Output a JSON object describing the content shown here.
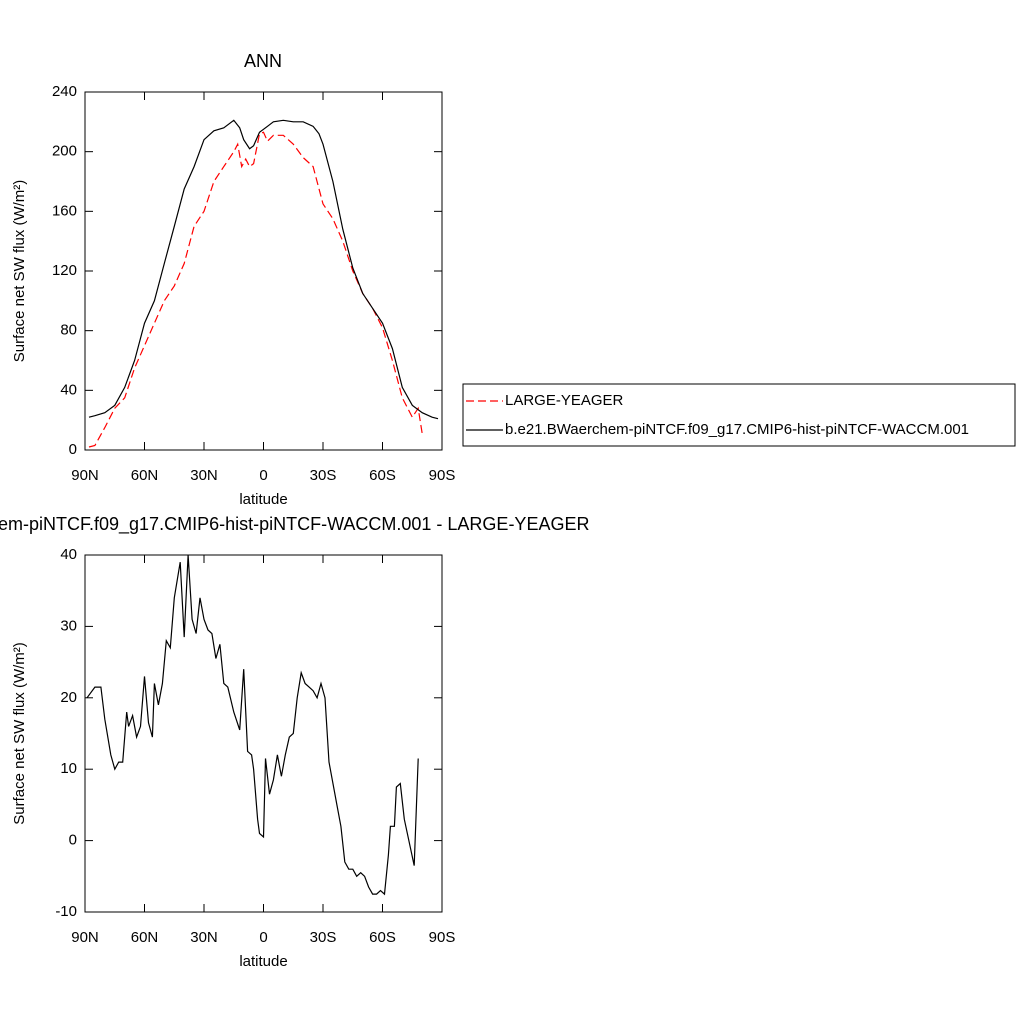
{
  "chart_data": [
    {
      "type": "line",
      "title": "ANN",
      "xlabel": "latitude",
      "ylabel": "Surface net SW flux (W/m²)",
      "xlim": [
        90,
        -90
      ],
      "xticks": [
        {
          "value": 90,
          "label": "90N"
        },
        {
          "value": 60,
          "label": "60N"
        },
        {
          "value": 30,
          "label": "30N"
        },
        0,
        {
          "value": -30,
          "label": "30S"
        },
        {
          "value": -60,
          "label": "60S"
        },
        {
          "value": -90,
          "label": "90S"
        }
      ],
      "ylim": [
        0,
        240
      ],
      "yticks": [
        0,
        40,
        80,
        120,
        160,
        200,
        240
      ],
      "legend": "right",
      "series": [
        {
          "name": "LARGE-YEAGER",
          "color": "#ff0000",
          "dashed": true,
          "x": [
            88,
            85,
            80,
            75,
            70,
            65,
            60,
            55,
            50,
            45,
            40,
            35,
            30,
            25,
            20,
            15,
            13,
            11,
            9,
            7,
            5,
            2,
            0,
            -2,
            -5,
            -10,
            -15,
            -20,
            -25,
            -30,
            -35,
            -40,
            -45,
            -50,
            -55,
            -60,
            -65,
            -70,
            -75,
            -78,
            -80
          ],
          "values": [
            2,
            3,
            15,
            28,
            35,
            55,
            70,
            85,
            100,
            110,
            125,
            150,
            160,
            180,
            190,
            200,
            205,
            190,
            195,
            190,
            192,
            212,
            213,
            207,
            211,
            211,
            205,
            196,
            190,
            165,
            155,
            140,
            120,
            105,
            95,
            82,
            60,
            35,
            22,
            28,
            11
          ]
        },
        {
          "name": "b.e21.BWaerchem-piNTCF.f09_g17.CMIP6-hist-piNTCF-WACCM.001",
          "color": "#000000",
          "dashed": false,
          "x": [
            88,
            85,
            80,
            75,
            70,
            65,
            60,
            55,
            50,
            45,
            40,
            35,
            30,
            25,
            20,
            15,
            12,
            10,
            7,
            5,
            2,
            0,
            -2,
            -5,
            -10,
            -15,
            -20,
            -25,
            -28,
            -30,
            -35,
            -40,
            -45,
            -50,
            -55,
            -60,
            -65,
            -70,
            -75,
            -80,
            -85,
            -88
          ],
          "values": [
            22,
            23,
            25,
            30,
            42,
            60,
            85,
            100,
            125,
            150,
            175,
            190,
            208,
            214,
            216,
            221,
            216,
            208,
            202,
            204,
            213,
            215,
            217,
            220,
            221,
            220,
            220,
            217,
            212,
            205,
            180,
            148,
            122,
            105,
            95,
            85,
            68,
            42,
            30,
            25,
            22,
            21
          ]
        }
      ]
    },
    {
      "type": "line",
      "title": "em-piNTCF.f09_g17.CMIP6-hist-piNTCF-WACCM.001 - LARGE-YEAGER",
      "xlabel": "latitude",
      "ylabel": "Surface net SW flux (W/m²)",
      "xlim": [
        90,
        -90
      ],
      "xticks": [
        {
          "value": 90,
          "label": "90N"
        },
        {
          "value": 60,
          "label": "60N"
        },
        {
          "value": 30,
          "label": "30N"
        },
        0,
        {
          "value": -30,
          "label": "30S"
        },
        {
          "value": -60,
          "label": "60S"
        },
        {
          "value": -90,
          "label": "90S"
        }
      ],
      "ylim": [
        -10,
        40
      ],
      "yticks": [
        -10,
        0,
        10,
        20,
        30,
        40
      ],
      "series": [
        {
          "color": "#000000",
          "dashed": false,
          "x": [
            89,
            85,
            82,
            80,
            77,
            75,
            73,
            71,
            69,
            68,
            66,
            64,
            62,
            60,
            58,
            56,
            55,
            53,
            51,
            49,
            47,
            45,
            42,
            40,
            38,
            36,
            34,
            32,
            30,
            28,
            26,
            24,
            22,
            20,
            18,
            15,
            12,
            10,
            8,
            6,
            5,
            3,
            2,
            0,
            -1,
            -3,
            -5,
            -7,
            -9,
            -11,
            -13,
            -15,
            -17,
            -19,
            -21,
            -23,
            -25,
            -27,
            -29,
            -31,
            -33,
            -37,
            -39,
            -41,
            -43,
            -45,
            -47,
            -49,
            -51,
            -53,
            -55,
            -57,
            -59,
            -61,
            -63,
            -64,
            -66,
            -67,
            -69,
            -71,
            -76,
            -78
          ],
          "values": [
            20,
            21.5,
            21.5,
            17,
            12,
            10,
            11,
            11,
            18,
            16,
            17.5,
            14.5,
            16,
            23,
            16.5,
            14.5,
            22,
            19,
            22,
            28,
            27,
            34,
            39,
            28.5,
            40,
            31,
            29,
            34,
            31,
            29.5,
            29,
            25.5,
            27.5,
            22,
            21.5,
            18,
            15.5,
            24,
            12.5,
            12,
            10,
            3,
            1,
            0.5,
            11.5,
            6.5,
            8.5,
            12,
            9,
            12,
            14.5,
            15,
            20,
            23.5,
            22,
            21.5,
            21,
            20,
            22,
            20,
            11,
            5,
            2,
            -3,
            -4,
            -4,
            -5,
            -4.5,
            -5,
            -6.5,
            -7.5,
            -7.5,
            -7,
            -7.5,
            -2,
            2,
            2,
            7.5,
            8,
            3,
            -3.5,
            11.5
          ]
        }
      ]
    }
  ]
}
